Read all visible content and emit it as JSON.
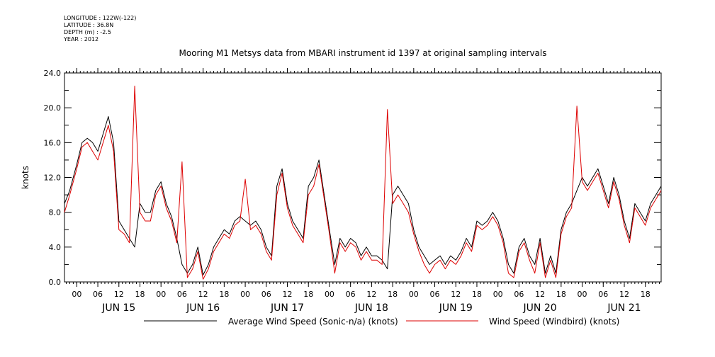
{
  "metadata": {
    "longitude": "LONGITUDE : 122W(-122)",
    "latitude": "LATITUDE : 36.8N",
    "depth": "DEPTH (m) : -2.5",
    "year": "YEAR : 2012"
  },
  "chart_data": {
    "type": "line",
    "title": "Mooring M1 Metsys data from MBARI instrument id 1397 at original sampling intervals",
    "ylabel": "knots",
    "ylim": [
      0,
      24
    ],
    "y_ticks": [
      "0.0",
      "4.0",
      "8.0",
      "12.0",
      "16.0",
      "20.0",
      "24.0"
    ],
    "x_range_hours": [
      -3.5,
      166.5
    ],
    "hour_ticks": [
      "00",
      "06",
      "12",
      "18",
      "00",
      "06",
      "12",
      "18",
      "00",
      "06",
      "12",
      "18",
      "00",
      "06",
      "12",
      "18",
      "00",
      "06",
      "12",
      "18",
      "00",
      "06",
      "12",
      "18",
      "00",
      "06",
      "12",
      "18"
    ],
    "day_labels": [
      "JUN 15",
      "JUN 16",
      "JUN 17",
      "JUN 18",
      "JUN 19",
      "JUN 20",
      "JUN 21"
    ],
    "grid": false,
    "legend_placement": "bottom",
    "series": [
      {
        "name": "Average Wind Speed (Sonic-n/a) (knots)",
        "color": "#000000",
        "x": [
          -3.5,
          -2,
          0,
          1.5,
          3,
          4.5,
          6,
          7.5,
          9,
          10.5,
          12,
          13.5,
          15,
          16.5,
          18,
          19.5,
          21,
          22.5,
          24,
          25.5,
          27,
          28.5,
          30,
          31.5,
          33,
          34.5,
          36,
          37.5,
          39,
          40.5,
          42,
          43.5,
          45,
          46.5,
          48,
          49.5,
          51,
          52.5,
          54,
          55.5,
          57,
          58.5,
          60,
          61.5,
          63,
          64.5,
          66,
          67.5,
          69,
          70.5,
          72,
          73.5,
          75,
          76.5,
          78,
          79.5,
          81,
          82.5,
          84,
          85.5,
          87,
          88.5,
          90,
          91.5,
          93,
          94.5,
          96,
          97.5,
          99,
          100.5,
          102,
          103.5,
          105,
          106.5,
          108,
          109.5,
          111,
          112.5,
          114,
          115.5,
          117,
          118.5,
          120,
          121.5,
          123,
          124.5,
          126,
          127.5,
          129,
          130.5,
          132,
          133.5,
          135,
          136.5,
          138,
          139.5,
          141,
          142.5,
          144,
          145.5,
          147,
          148.5,
          150,
          151.5,
          153,
          154.5,
          156,
          157.5,
          159,
          160.5,
          162,
          163.5,
          165,
          166.5
        ],
        "values": [
          9,
          10.5,
          13.5,
          16,
          16.5,
          16,
          15,
          17,
          19,
          16,
          7,
          6,
          5,
          4,
          9,
          8,
          8,
          10.5,
          11.5,
          9,
          7.5,
          5,
          2,
          1,
          2,
          4,
          0.8,
          2,
          4,
          5,
          6,
          5.5,
          7,
          7.5,
          7,
          6.5,
          7,
          6,
          4,
          3,
          11,
          13,
          9,
          7,
          6,
          5,
          11,
          12,
          14,
          10,
          6,
          2,
          5,
          4,
          5,
          4.5,
          3,
          4,
          3,
          3,
          2.5,
          1.5,
          10,
          11,
          10,
          9,
          6,
          4,
          3,
          2,
          2.5,
          3,
          2,
          3,
          2.5,
          3.5,
          5,
          4,
          7,
          6.5,
          7,
          8,
          7,
          5,
          2,
          1,
          4,
          5,
          3,
          2,
          5,
          1,
          3,
          1,
          6,
          8,
          9,
          10.5,
          12,
          11,
          12,
          13,
          11,
          9,
          12,
          10,
          7,
          5,
          9,
          8,
          7,
          9,
          10,
          11
        ]
      },
      {
        "name": "Wind Speed (Windbird) (knots)",
        "color": "#dd0000",
        "x": [
          -3.5,
          -2,
          0,
          1.5,
          3,
          4.5,
          6,
          7.5,
          9,
          10.5,
          12,
          13.5,
          15,
          16.5,
          18,
          19.5,
          21,
          22.5,
          24,
          25.5,
          27,
          28.5,
          30,
          31.5,
          33,
          34.5,
          36,
          37.5,
          39,
          40.5,
          42,
          43.5,
          45,
          46.5,
          48,
          49.5,
          51,
          52.5,
          54,
          55.5,
          57,
          58.5,
          60,
          61.5,
          63,
          64.5,
          66,
          67.5,
          69,
          70.5,
          72,
          73.5,
          75,
          76.5,
          78,
          79.5,
          81,
          82.5,
          84,
          85.5,
          87,
          88.5,
          90,
          91.5,
          93,
          94.5,
          96,
          97.5,
          99,
          100.5,
          102,
          103.5,
          105,
          106.5,
          108,
          109.5,
          111,
          112.5,
          114,
          115.5,
          117,
          118.5,
          120,
          121.5,
          123,
          124.5,
          126,
          127.5,
          129,
          130.5,
          132,
          133.5,
          135,
          136.5,
          138,
          139.5,
          141,
          142.5,
          144,
          145.5,
          147,
          148.5,
          150,
          151.5,
          153,
          154.5,
          156,
          157.5,
          159,
          160.5,
          162,
          163.5,
          165,
          166.5
        ],
        "values": [
          8,
          10,
          13,
          15.5,
          16,
          15,
          14,
          16,
          18,
          15,
          6,
          5.5,
          4.5,
          22.5,
          8,
          7,
          7,
          10,
          11,
          8.5,
          7,
          4.5,
          13.8,
          0.5,
          1.5,
          3.5,
          0.3,
          1.5,
          3.5,
          4.5,
          5.5,
          5,
          6.5,
          7,
          11.8,
          6,
          6.5,
          5.5,
          3.5,
          2.5,
          10,
          12.5,
          8.5,
          6.5,
          5.5,
          4.5,
          10,
          11,
          13.5,
          9.5,
          5.5,
          1,
          4.5,
          3.5,
          4.5,
          4,
          2.5,
          3.5,
          2.5,
          2.5,
          2,
          19.8,
          9,
          10,
          9,
          8,
          5.5,
          3.5,
          2,
          1,
          2,
          2.5,
          1.5,
          2.5,
          2,
          3,
          4.5,
          3.5,
          6.5,
          6,
          6.5,
          7.5,
          6.5,
          4.5,
          1,
          0.5,
          3.5,
          4.5,
          2.5,
          1,
          4.5,
          0.5,
          2.5,
          0.5,
          5.5,
          7.5,
          8.5,
          20.2,
          11.5,
          10.5,
          11.5,
          12.5,
          10.5,
          8.5,
          11.5,
          9.5,
          6.5,
          4.5,
          8.5,
          7.5,
          6.5,
          8.5,
          9.5,
          10.5
        ]
      }
    ]
  }
}
